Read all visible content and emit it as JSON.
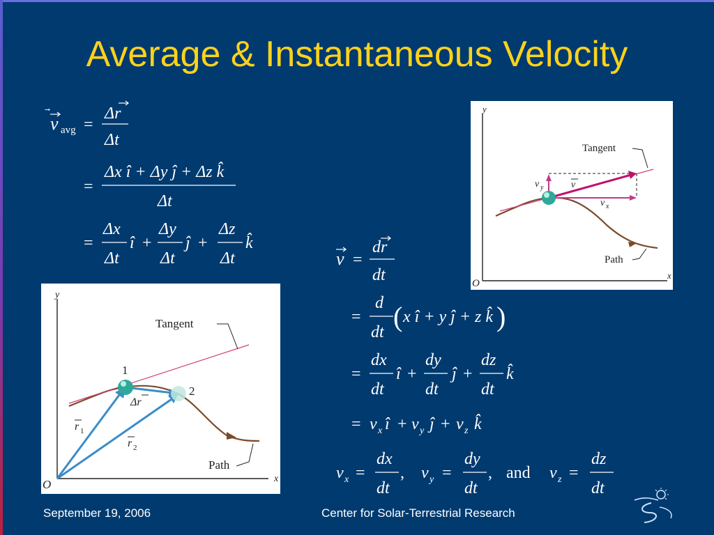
{
  "title": "Average & Instantaneous Velocity",
  "eq_left": {
    "lhs": "v",
    "sub": "avg",
    "eq": "=",
    "delta_r": "Δr",
    "delta_t": "Δt",
    "num2": "Δx î + Δy ĵ + Δz k̂",
    "dx": "Δx",
    "dy": "Δy",
    "dz": "Δz",
    "i": "î",
    "j": "ĵ",
    "k": "k̂",
    "plus": "+"
  },
  "eq_right": {
    "lhs": "v",
    "d": "d",
    "dr": "dr",
    "dt": "dt",
    "paren_expr": "x î + y ĵ + z k̂",
    "dx": "dx",
    "dy": "dy",
    "dz": "dz",
    "components": "v",
    "sub_x": "x",
    "sub_y": "y",
    "sub_z": "z",
    "and": "and",
    "comma": ","
  },
  "fig_top": {
    "y_label": "y",
    "x_label": "x",
    "origin": "O",
    "tangent": "Tangent",
    "path": "Path",
    "v": "v",
    "vx": "v",
    "vx_sub": "x",
    "vy": "v",
    "vy_sub": "y"
  },
  "fig_bottom": {
    "y_label": "y",
    "x_label": "x",
    "origin": "O",
    "tangent": "Tangent",
    "path": "Path",
    "point1": "1",
    "point2": "2",
    "r1": "r",
    "r1_sub": "1",
    "r2": "r",
    "r2_sub": "2",
    "delta_r": "Δr"
  },
  "footer": {
    "date": "September 19, 2006",
    "org": "Center for Solar-Terrestrial Research"
  },
  "colors": {
    "background": "#003a6f",
    "title": "#ffd21a",
    "tangent_line": "#d0407a",
    "vector_blue": "#3a8cc8",
    "velocity_magenta": "#c0106e",
    "path_brown": "#7a4a2a"
  }
}
